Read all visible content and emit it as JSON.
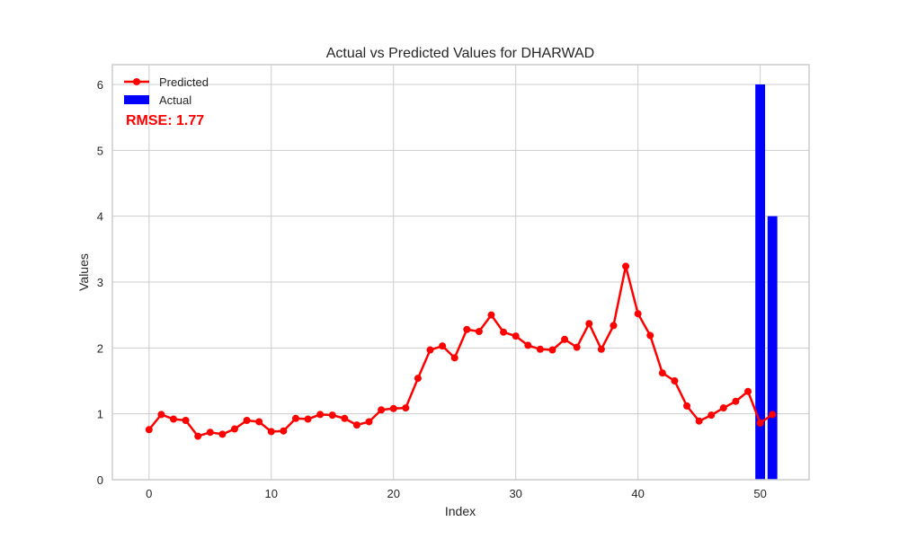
{
  "chart_data": {
    "type": "line",
    "title": "Actual vs Predicted Values for DHARWAD",
    "xlabel": "Index",
    "ylabel": "Values",
    "xlim": [
      -3,
      54
    ],
    "ylim": [
      0,
      6.3
    ],
    "xticks": [
      "0",
      "10",
      "20",
      "30",
      "40",
      "50"
    ],
    "yticks": [
      "0",
      "1",
      "2",
      "3",
      "4",
      "5",
      "6"
    ],
    "grid": true,
    "legend_position": "top-left",
    "annotation": "RMSE: 1.77",
    "series": [
      {
        "name": "Predicted",
        "type": "line",
        "color": "#ff0000",
        "x": [
          0,
          1,
          2,
          3,
          4,
          5,
          6,
          7,
          8,
          9,
          10,
          11,
          12,
          13,
          14,
          15,
          16,
          17,
          18,
          19,
          20,
          21,
          22,
          23,
          24,
          25,
          26,
          27,
          28,
          29,
          30,
          31,
          32,
          33,
          34,
          35,
          36,
          37,
          38,
          39,
          40,
          41,
          42,
          43,
          44,
          45,
          46,
          47,
          48,
          49,
          50,
          51
        ],
        "values": [
          0.76,
          0.99,
          0.92,
          0.9,
          0.66,
          0.72,
          0.69,
          0.77,
          0.9,
          0.88,
          0.73,
          0.74,
          0.93,
          0.92,
          0.99,
          0.98,
          0.93,
          0.83,
          0.88,
          1.06,
          1.08,
          1.09,
          1.54,
          1.97,
          2.03,
          1.85,
          2.28,
          2.25,
          2.5,
          2.24,
          2.18,
          2.04,
          1.98,
          1.97,
          2.13,
          2.01,
          2.37,
          1.98,
          2.34,
          3.24,
          2.52,
          2.19,
          1.62,
          1.5,
          1.12,
          0.89,
          0.98,
          1.09,
          1.19,
          1.34,
          0.86,
          0.99
        ]
      },
      {
        "name": "Actual",
        "type": "bar",
        "color": "#0000ff",
        "x": [
          50,
          51
        ],
        "values": [
          6,
          4
        ]
      }
    ]
  }
}
